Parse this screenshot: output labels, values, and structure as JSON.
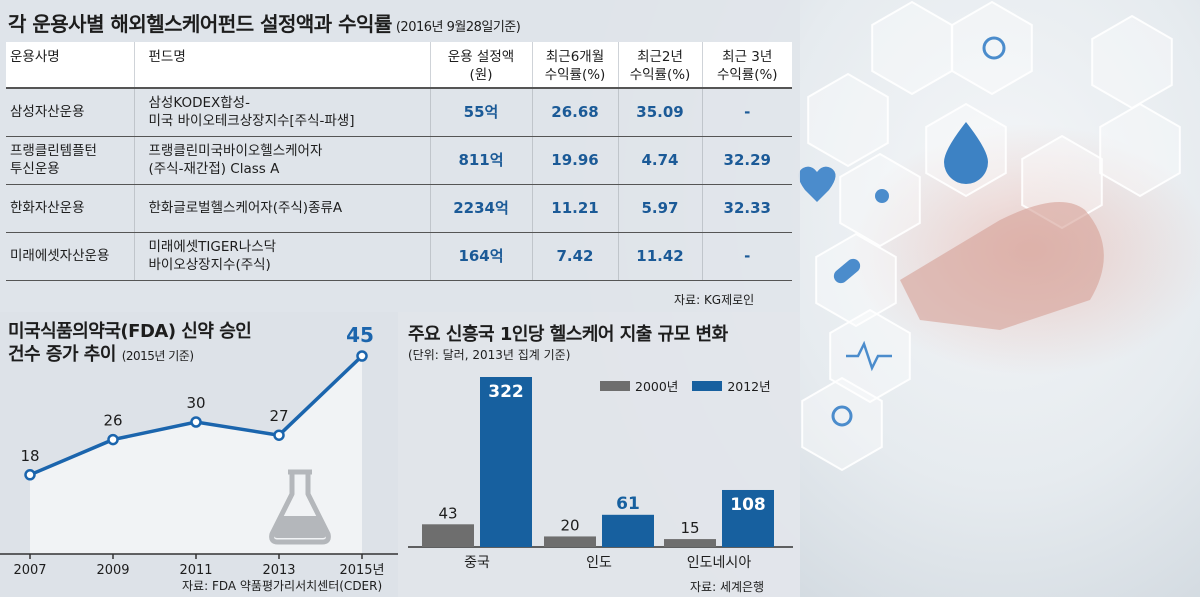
{
  "page": {
    "title": "각 운용사별 해외헬스케어펀드 설정액과 수익률",
    "title_note": "(2016년 9월28일기준)",
    "source": "자료: KG제로인"
  },
  "table": {
    "headers": [
      "운용사명",
      "펀드명",
      "운용 설정액\n(원)",
      "최근6개월\n수익률(%)",
      "최근2년\n수익률(%)",
      "최근 3년\n수익률(%)"
    ],
    "rows": [
      {
        "company": "삼성자산운용",
        "fund": "삼성KODEX합성-\n미국 바이오테크상장지수[주식-파생]",
        "amount": "55억",
        "r6m": "26.68",
        "r2y": "35.09",
        "r3y": "-"
      },
      {
        "company": "프랭클린템플턴\n투신운용",
        "fund": "프랭클린미국바이오헬스케어자\n(주식-재간접) Class A",
        "amount": "811억",
        "r6m": "19.96",
        "r2y": "4.74",
        "r3y": "32.29"
      },
      {
        "company": "한화자산운용",
        "fund": "한화글로벌헬스케어자(주식)종류A",
        "amount": "2234억",
        "r6m": "11.21",
        "r2y": "5.97",
        "r3y": "32.33"
      },
      {
        "company": "미래에셋자산운용",
        "fund": "미래에셋TIGER나스닥\n바이오상장지수(주식)",
        "amount": "164억",
        "r6m": "7.42",
        "r2y": "11.42",
        "r3y": "-"
      }
    ]
  },
  "chart_data": [
    {
      "type": "area",
      "title": "미국식품의약국(FDA) 신약 승인\n건수 증가 추이",
      "subtitle": "(2015년 기준)",
      "categories": [
        "2007",
        "2009",
        "2011",
        "2013",
        "2015년"
      ],
      "values": [
        18,
        26,
        30,
        27,
        45
      ],
      "ylim": [
        0,
        50
      ],
      "source": "자료: FDA 약품평가리서치센터(CDER)",
      "colors": {
        "line": "#1b65ad",
        "fill": "#f1f3f5",
        "last_label": "#1b65ad"
      }
    },
    {
      "type": "bar",
      "title": "주요 신흥국 1인당 헬스케어 지출 규모 변화",
      "unit_note": "(단위: 달러, 2013년 집계 기준)",
      "categories": [
        "중국",
        "인도",
        "인도네시아"
      ],
      "series": [
        {
          "name": "2000년",
          "values": [
            43,
            20,
            15
          ],
          "color": "#6e6e6e"
        },
        {
          "name": "2012년",
          "values": [
            322,
            61,
            108
          ],
          "color": "#17609f"
        }
      ],
      "ylim": [
        0,
        322
      ],
      "source": "자료: 세계은행"
    }
  ]
}
